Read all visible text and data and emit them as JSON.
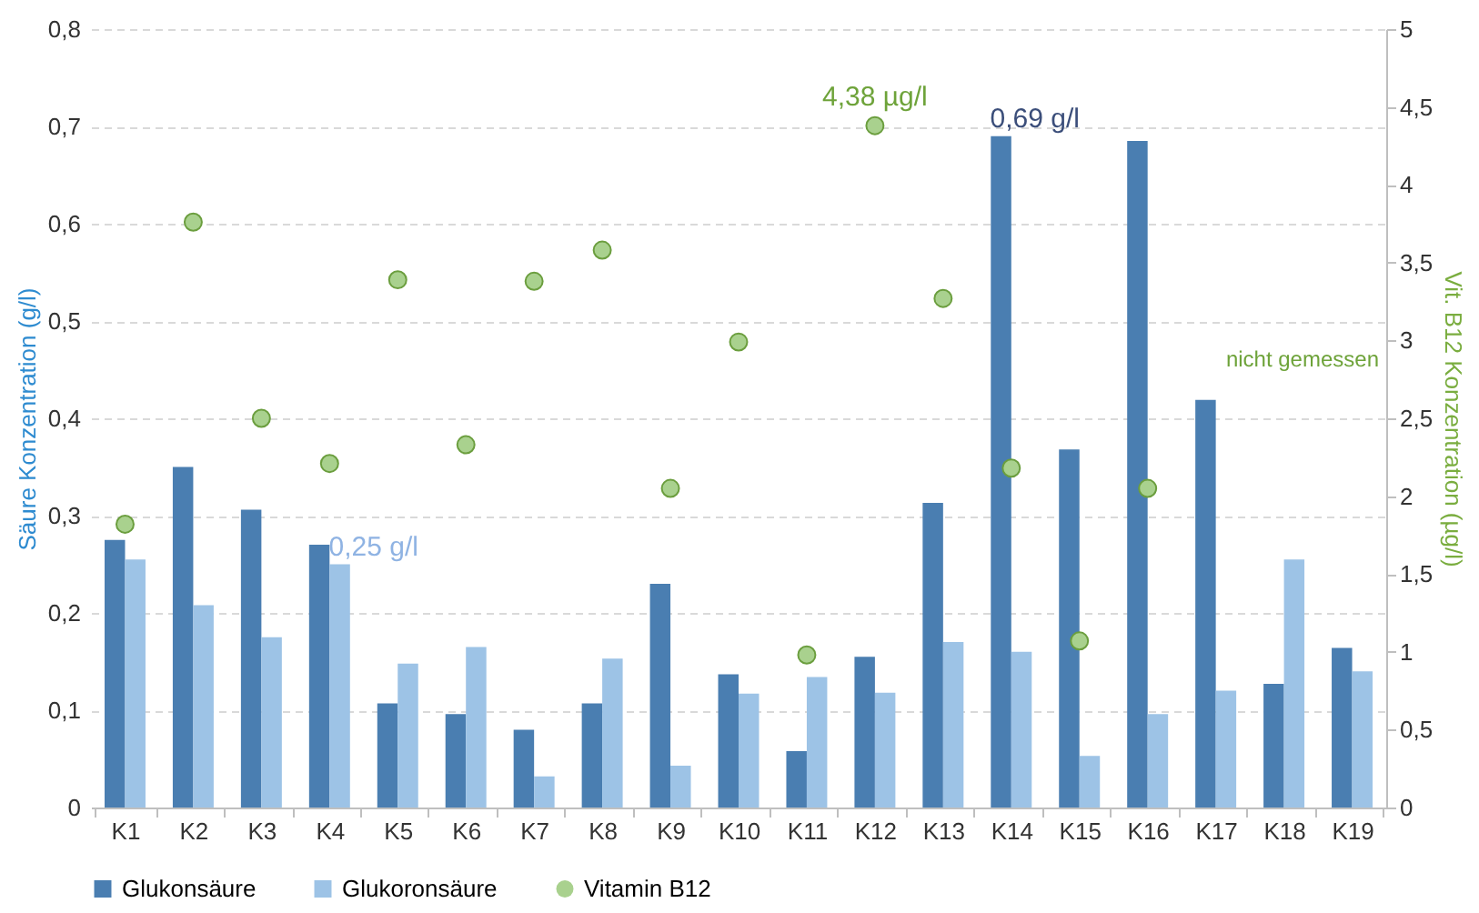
{
  "chart_data": {
    "type": "bar",
    "categories": [
      "K1",
      "K2",
      "K3",
      "K4",
      "K5",
      "K6",
      "K7",
      "K8",
      "K9",
      "K10",
      "K11",
      "K12",
      "K13",
      "K14",
      "K15",
      "K16",
      "K17",
      "K18",
      "K19"
    ],
    "ylabel": "Säure Konzentration (g/l)",
    "y2label": "Vit. B12 Konzentration (µg/l)",
    "ylim": [
      0,
      0.8
    ],
    "yticks": [
      {
        "value": 0,
        "label": "0"
      },
      {
        "value": 0.1,
        "label": "0,1"
      },
      {
        "value": 0.2,
        "label": "0,2"
      },
      {
        "value": 0.3,
        "label": "0,3"
      },
      {
        "value": 0.4,
        "label": "0,4"
      },
      {
        "value": 0.5,
        "label": "0,5"
      },
      {
        "value": 0.6,
        "label": "0,6"
      },
      {
        "value": 0.7,
        "label": "0,7"
      },
      {
        "value": 0.8,
        "label": "0,8"
      }
    ],
    "y2lim": [
      0,
      5
    ],
    "y2ticks": [
      {
        "value": 0,
        "label": "0"
      },
      {
        "value": 0.5,
        "label": "0,5"
      },
      {
        "value": 1,
        "label": "1"
      },
      {
        "value": 1.5,
        "label": "1,5"
      },
      {
        "value": 2,
        "label": "2"
      },
      {
        "value": 2.5,
        "label": "2,5"
      },
      {
        "value": 3,
        "label": "3"
      },
      {
        "value": 3.5,
        "label": "3,5"
      },
      {
        "value": 4,
        "label": "4"
      },
      {
        "value": 4.5,
        "label": "4,5"
      },
      {
        "value": 5,
        "label": "5"
      }
    ],
    "grid": "y",
    "legend": "bottom",
    "annotations": [
      "nicht gemessen"
    ],
    "series": [
      {
        "name": "Glukonsäure",
        "color": "#4a7eb1",
        "values": [
          0.275,
          0.35,
          0.306,
          0.27,
          0.107,
          0.096,
          0.08,
          0.107,
          0.23,
          0.137,
          0.058,
          0.155,
          0.313,
          0.69,
          0.368,
          0.685,
          0.419,
          0.127,
          0.164
        ],
        "value_labels": [
          null,
          null,
          null,
          null,
          null,
          null,
          null,
          null,
          null,
          null,
          null,
          null,
          null,
          "0,69 g/l",
          null,
          null,
          null,
          null,
          null
        ]
      },
      {
        "name": "Glukoronsäure",
        "color": "#9dc3e6",
        "values": [
          0.255,
          0.208,
          0.175,
          0.25,
          0.148,
          0.165,
          0.032,
          0.153,
          0.043,
          0.117,
          0.134,
          0.118,
          0.17,
          0.16,
          0.053,
          0.096,
          0.12,
          0.255,
          0.14
        ],
        "value_labels": [
          null,
          null,
          null,
          "0,25 g/l",
          null,
          null,
          null,
          null,
          null,
          null,
          null,
          null,
          null,
          null,
          null,
          null,
          null,
          null,
          null
        ]
      },
      {
        "name": "Vitamin B12",
        "type": "scatter",
        "axis": "y2",
        "marker": "circle",
        "color": "#a9d18e",
        "values": [
          1.82,
          3.76,
          2.5,
          2.21,
          3.39,
          2.33,
          3.38,
          3.58,
          2.05,
          2.99,
          0.98,
          4.38,
          3.27,
          2.18,
          1.07,
          2.05,
          null,
          null,
          null
        ],
        "value_labels": [
          null,
          null,
          null,
          null,
          null,
          null,
          null,
          null,
          null,
          null,
          null,
          "4,38 µg/l",
          null,
          null,
          null,
          null,
          null,
          null,
          null
        ]
      }
    ]
  }
}
